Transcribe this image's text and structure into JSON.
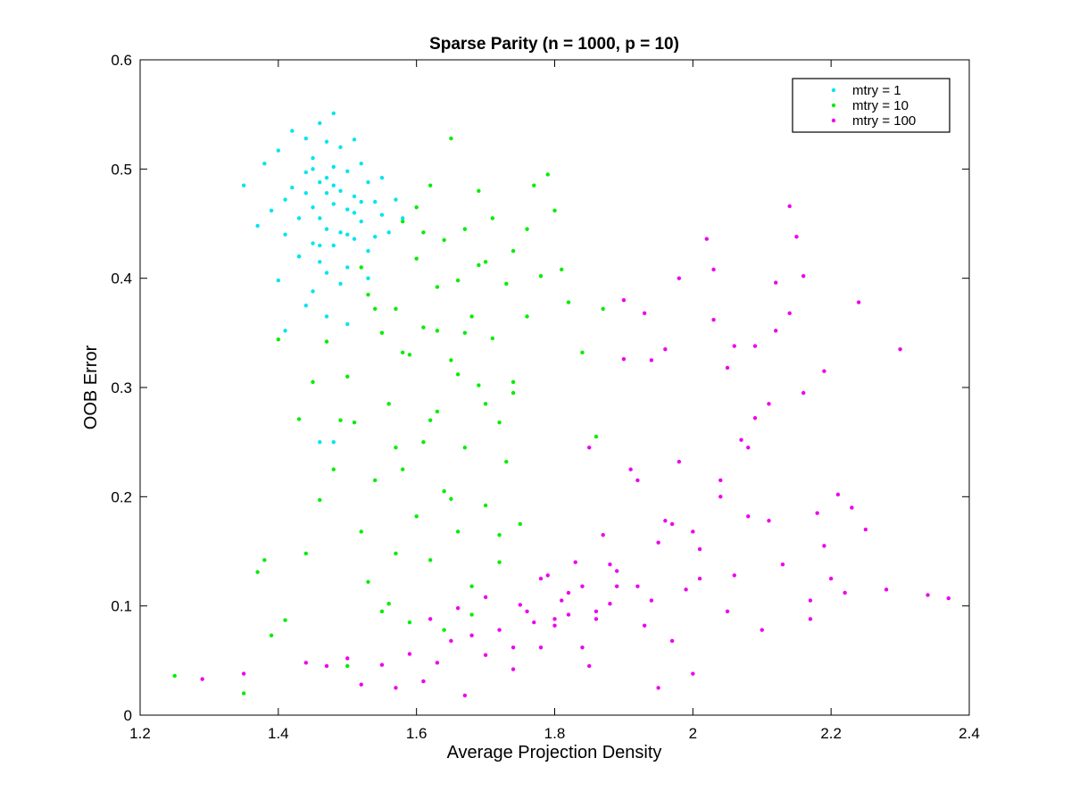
{
  "chart_data": {
    "type": "scatter",
    "title": "Sparse Parity (n = 1000, p = 10)",
    "xlabel": "Average Projection Density",
    "ylabel": "OOB Error",
    "xlim": [
      1.2,
      2.4
    ],
    "ylim": [
      0,
      0.6
    ],
    "xticks": [
      1.2,
      1.4,
      1.6,
      1.8,
      2,
      2.2,
      2.4
    ],
    "xtick_labels": [
      "1.2",
      "1.4",
      "1.6",
      "1.8",
      "2",
      "2.2",
      "2.4"
    ],
    "yticks": [
      0,
      0.1,
      0.2,
      0.3,
      0.4,
      0.5,
      0.6
    ],
    "ytick_labels": [
      "0",
      "0.1",
      "0.2",
      "0.3",
      "0.4",
      "0.5",
      "0.6"
    ],
    "grid": false,
    "legend_position": "top-right",
    "series": [
      {
        "name": "mtry = 1",
        "color": "#00e5ee",
        "x": [
          1.35,
          1.37,
          1.38,
          1.39,
          1.4,
          1.4,
          1.41,
          1.41,
          1.42,
          1.42,
          1.43,
          1.43,
          1.44,
          1.44,
          1.44,
          1.45,
          1.45,
          1.45,
          1.45,
          1.46,
          1.46,
          1.46,
          1.46,
          1.47,
          1.47,
          1.47,
          1.47,
          1.48,
          1.48,
          1.48,
          1.48,
          1.49,
          1.49,
          1.49,
          1.5,
          1.5,
          1.5,
          1.51,
          1.51,
          1.51,
          1.52,
          1.52,
          1.53,
          1.53,
          1.54,
          1.54,
          1.55,
          1.55,
          1.56,
          1.57,
          1.58,
          1.46,
          1.47,
          1.5,
          1.48,
          1.43,
          1.41,
          1.53,
          1.49,
          1.45,
          1.47,
          1.51,
          1.44,
          1.52,
          1.46,
          1.48,
          1.5
        ],
        "y": [
          0.485,
          0.448,
          0.505,
          0.462,
          0.517,
          0.398,
          0.472,
          0.44,
          0.535,
          0.483,
          0.455,
          0.42,
          0.528,
          0.497,
          0.375,
          0.51,
          0.465,
          0.432,
          0.388,
          0.542,
          0.488,
          0.455,
          0.415,
          0.525,
          0.478,
          0.445,
          0.405,
          0.551,
          0.502,
          0.468,
          0.43,
          0.52,
          0.48,
          0.442,
          0.498,
          0.463,
          0.41,
          0.527,
          0.475,
          0.436,
          0.505,
          0.452,
          0.488,
          0.425,
          0.47,
          0.438,
          0.458,
          0.492,
          0.442,
          0.472,
          0.455,
          0.25,
          0.365,
          0.358,
          0.25,
          0.42,
          0.352,
          0.4,
          0.395,
          0.5,
          0.492,
          0.46,
          0.478,
          0.47,
          0.43,
          0.485,
          0.44
        ]
      },
      {
        "name": "mtry = 10",
        "color": "#00ee00",
        "x": [
          1.25,
          1.35,
          1.37,
          1.38,
          1.39,
          1.4,
          1.41,
          1.43,
          1.44,
          1.45,
          1.46,
          1.47,
          1.48,
          1.49,
          1.5,
          1.5,
          1.51,
          1.52,
          1.53,
          1.53,
          1.54,
          1.55,
          1.55,
          1.56,
          1.57,
          1.57,
          1.58,
          1.58,
          1.59,
          1.59,
          1.6,
          1.6,
          1.61,
          1.61,
          1.62,
          1.62,
          1.63,
          1.63,
          1.64,
          1.64,
          1.65,
          1.65,
          1.66,
          1.66,
          1.67,
          1.67,
          1.68,
          1.68,
          1.69,
          1.69,
          1.7,
          1.7,
          1.71,
          1.71,
          1.72,
          1.72,
          1.73,
          1.73,
          1.74,
          1.74,
          1.75,
          1.76,
          1.76,
          1.77,
          1.78,
          1.79,
          1.8,
          1.81,
          1.82,
          1.84,
          1.86,
          1.87,
          1.52,
          1.56,
          1.6,
          1.64,
          1.68,
          1.72,
          1.58,
          1.62,
          1.66,
          1.7,
          1.54,
          1.74,
          1.63,
          1.67,
          1.61,
          1.65,
          1.69,
          1.57
        ],
        "y": [
          0.036,
          0.02,
          0.131,
          0.142,
          0.073,
          0.344,
          0.087,
          0.271,
          0.148,
          0.305,
          0.197,
          0.342,
          0.225,
          0.27,
          0.045,
          0.31,
          0.268,
          0.41,
          0.122,
          0.385,
          0.215,
          0.35,
          0.095,
          0.285,
          0.148,
          0.372,
          0.225,
          0.452,
          0.085,
          0.33,
          0.418,
          0.182,
          0.355,
          0.25,
          0.485,
          0.142,
          0.392,
          0.278,
          0.435,
          0.205,
          0.325,
          0.528,
          0.168,
          0.398,
          0.445,
          0.245,
          0.365,
          0.092,
          0.48,
          0.302,
          0.415,
          0.192,
          0.345,
          0.455,
          0.268,
          0.165,
          0.395,
          0.232,
          0.425,
          0.295,
          0.175,
          0.365,
          0.445,
          0.485,
          0.402,
          0.495,
          0.462,
          0.408,
          0.378,
          0.332,
          0.255,
          0.372,
          0.168,
          0.102,
          0.465,
          0.078,
          0.118,
          0.14,
          0.332,
          0.27,
          0.312,
          0.285,
          0.372,
          0.305,
          0.352,
          0.35,
          0.442,
          0.198,
          0.412,
          0.245
        ]
      },
      {
        "name": "mtry = 100",
        "color": "#ee00ee",
        "x": [
          1.29,
          1.35,
          1.44,
          1.47,
          1.5,
          1.52,
          1.55,
          1.57,
          1.59,
          1.61,
          1.63,
          1.65,
          1.67,
          1.68,
          1.7,
          1.72,
          1.74,
          1.75,
          1.76,
          1.77,
          1.78,
          1.79,
          1.8,
          1.81,
          1.82,
          1.83,
          1.84,
          1.85,
          1.86,
          1.87,
          1.88,
          1.89,
          1.9,
          1.91,
          1.92,
          1.93,
          1.94,
          1.95,
          1.96,
          1.97,
          1.98,
          1.99,
          2.0,
          2.01,
          2.02,
          2.03,
          2.04,
          2.05,
          2.06,
          2.07,
          2.08,
          2.09,
          2.1,
          2.11,
          2.12,
          2.13,
          2.14,
          2.15,
          2.16,
          2.17,
          2.18,
          2.19,
          2.2,
          2.21,
          2.22,
          2.23,
          2.24,
          2.25,
          2.28,
          2.3,
          2.34,
          2.37,
          2.14,
          2.16,
          2.03,
          1.98,
          1.94,
          1.9,
          2.12,
          2.06,
          1.8,
          1.84,
          1.88,
          1.92,
          1.96,
          2.0,
          2.04,
          2.08,
          1.82,
          1.86,
          1.78,
          1.74,
          1.7,
          1.66,
          1.62,
          1.95,
          1.97,
          2.01,
          2.05,
          2.09,
          2.11,
          2.17,
          2.19,
          1.93,
          1.89,
          1.85
        ],
        "y": [
          0.033,
          0.038,
          0.048,
          0.045,
          0.052,
          0.028,
          0.046,
          0.025,
          0.056,
          0.031,
          0.048,
          0.068,
          0.018,
          0.073,
          0.055,
          0.078,
          0.042,
          0.101,
          0.095,
          0.085,
          0.062,
          0.128,
          0.082,
          0.105,
          0.092,
          0.14,
          0.118,
          0.245,
          0.088,
          0.165,
          0.102,
          0.132,
          0.38,
          0.225,
          0.118,
          0.368,
          0.105,
          0.158,
          0.335,
          0.175,
          0.232,
          0.115,
          0.038,
          0.152,
          0.436,
          0.362,
          0.2,
          0.318,
          0.128,
          0.252,
          0.182,
          0.338,
          0.078,
          0.285,
          0.352,
          0.138,
          0.466,
          0.438,
          0.295,
          0.105,
          0.185,
          0.315,
          0.125,
          0.202,
          0.112,
          0.19,
          0.378,
          0.17,
          0.115,
          0.335,
          0.11,
          0.107,
          0.368,
          0.402,
          0.408,
          0.4,
          0.325,
          0.326,
          0.396,
          0.338,
          0.088,
          0.062,
          0.138,
          0.215,
          0.178,
          0.168,
          0.215,
          0.245,
          0.112,
          0.095,
          0.125,
          0.062,
          0.108,
          0.098,
          0.088,
          0.025,
          0.068,
          0.125,
          0.095,
          0.272,
          0.178,
          0.088,
          0.155,
          0.082,
          0.118,
          0.045
        ]
      }
    ]
  }
}
